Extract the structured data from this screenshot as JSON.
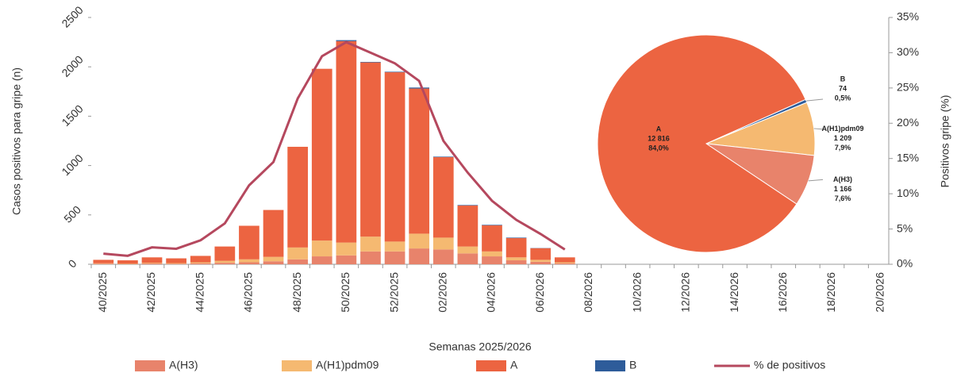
{
  "chart_data": [
    {
      "type": "bar",
      "stacked": true,
      "xlabel": "Semanas 2025/2026",
      "ylabel": "Casos positivos para gripe (n)",
      "y2label": "Positivos gripe (%)",
      "categories": [
        "40/2025",
        null,
        "42/2025",
        null,
        "44/2025",
        null,
        "46/2025",
        null,
        "48/2025",
        null,
        "50/2025",
        null,
        "52/2025",
        null,
        "02/2026",
        null,
        "04/2026",
        null,
        "06/2026",
        null,
        "08/2026",
        null,
        "10/2026",
        null,
        "12/2026",
        null,
        "14/2026",
        null,
        "16/2026",
        null,
        "18/2026",
        null,
        "20/2026"
      ],
      "series": [
        {
          "name": "A(H3)",
          "color": "#e8836b",
          "values": [
            5,
            4,
            8,
            6,
            10,
            15,
            20,
            30,
            50,
            80,
            90,
            130,
            130,
            160,
            150,
            110,
            80,
            40,
            25,
            10,
            null,
            null,
            null,
            null,
            null,
            null,
            null,
            null,
            null,
            null,
            null,
            null,
            null
          ]
        },
        {
          "name": "A(H1)pdm09",
          "color": "#f5b971",
          "values": [
            5,
            4,
            7,
            6,
            10,
            20,
            30,
            45,
            120,
            160,
            130,
            150,
            100,
            150,
            120,
            70,
            50,
            30,
            20,
            10,
            null,
            null,
            null,
            null,
            null,
            null,
            null,
            null,
            null,
            null,
            null,
            null,
            null
          ]
        },
        {
          "name": "A",
          "color": "#ec6441",
          "values": [
            35,
            32,
            55,
            48,
            65,
            145,
            340,
            475,
            1020,
            1740,
            2040,
            1765,
            1715,
            1470,
            815,
            415,
            265,
            195,
            118,
            50,
            null,
            null,
            null,
            null,
            null,
            null,
            null,
            null,
            null,
            null,
            null,
            null,
            null
          ]
        },
        {
          "name": "B",
          "color": "#2e5c9a",
          "values": [
            0,
            0,
            0,
            0,
            0,
            0,
            0,
            0,
            0,
            0,
            10,
            5,
            5,
            10,
            5,
            5,
            5,
            5,
            2,
            0,
            null,
            null,
            null,
            null,
            null,
            null,
            null,
            null,
            null,
            null,
            null,
            null,
            null
          ]
        },
        {
          "name": "% de positivos",
          "color": "#b5485e",
          "type": "line",
          "axis": "y2",
          "values": [
            1.5,
            1.2,
            2.4,
            2.2,
            3.4,
            5.8,
            11.2,
            14.5,
            23.5,
            29.5,
            31.5,
            30,
            28.5,
            26,
            17.5,
            13,
            9,
            6.3,
            4.3,
            2.1,
            null,
            null,
            null,
            null,
            null,
            null,
            null,
            null,
            null,
            null,
            null,
            null,
            null
          ]
        }
      ],
      "ylim": [
        0,
        2500
      ],
      "yticks": [
        0,
        500,
        1000,
        1500,
        2000,
        2500
      ],
      "y2lim": [
        0,
        35
      ],
      "y2ticks": [
        {
          "value": 0,
          "label": "0%"
        },
        {
          "value": 5,
          "label": "5%"
        },
        {
          "value": 10,
          "label": "10%"
        },
        {
          "value": 15,
          "label": "15%"
        },
        {
          "value": 20,
          "label": "20%"
        },
        {
          "value": 25,
          "label": "25%"
        },
        {
          "value": 30,
          "label": "30%"
        },
        {
          "value": 35,
          "label": "35%"
        }
      ]
    },
    {
      "type": "pie",
      "categories": [
        "B",
        "A(H1)pdm09",
        "A(H3)",
        "A"
      ],
      "values": [
        74,
        1209,
        1166,
        12816
      ],
      "value_labels": [
        "74",
        "1 209",
        "1 166",
        "12 816"
      ],
      "percents": [
        0.5,
        7.9,
        7.6,
        84.0
      ],
      "percent_labels": [
        "0,5%",
        "7,9%",
        "7,6%",
        "84,0%"
      ],
      "colors": [
        "#2e5c9a",
        "#f5b971",
        "#e8836b",
        "#ec6441"
      ]
    }
  ]
}
